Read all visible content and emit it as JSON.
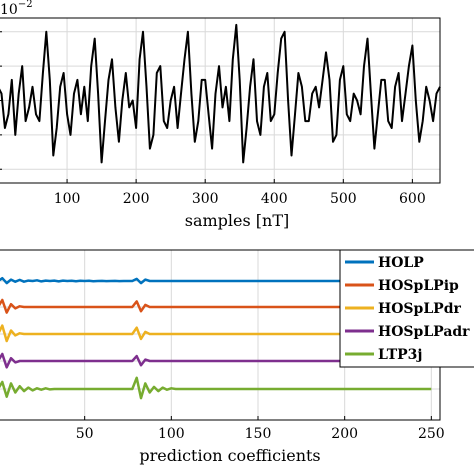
{
  "chart_data": [
    {
      "type": "line",
      "scale_label": "10^-2",
      "scale_base": "10",
      "scale_exp": "−2",
      "xlabel": "samples [nT]",
      "xlim": [
        0,
        640
      ],
      "x_ticks": [
        100,
        200,
        300,
        400,
        500,
        600
      ],
      "ylim": [
        -1.2,
        1.2
      ],
      "y_grid": [
        -1.0,
        -0.5,
        0.0,
        0.5,
        1.0
      ],
      "grid": true,
      "series": [
        {
          "color": "#000000",
          "x": [
            0,
            5,
            10,
            15,
            20,
            25,
            30,
            35,
            40,
            45,
            50,
            55,
            60,
            65,
            70,
            75,
            80,
            85,
            90,
            95,
            100,
            105,
            110,
            115,
            120,
            125,
            130,
            135,
            140,
            145,
            150,
            155,
            160,
            165,
            170,
            175,
            180,
            185,
            190,
            195,
            200,
            205,
            210,
            215,
            220,
            225,
            230,
            235,
            240,
            245,
            250,
            255,
            260,
            265,
            270,
            275,
            280,
            285,
            290,
            295,
            300,
            305,
            310,
            315,
            320,
            325,
            330,
            335,
            340,
            345,
            350,
            355,
            360,
            365,
            370,
            375,
            380,
            385,
            390,
            395,
            400,
            405,
            410,
            415,
            420,
            425,
            430,
            435,
            440,
            445,
            450,
            455,
            460,
            465,
            470,
            475,
            480,
            485,
            490,
            495,
            500,
            505,
            510,
            515,
            520,
            525,
            530,
            535,
            540,
            545,
            550,
            555,
            560,
            565,
            570,
            575,
            580,
            585,
            590,
            595,
            600,
            605,
            610,
            615,
            620,
            625,
            630,
            635,
            640
          ],
          "y": [
            0.2,
            0.1,
            -0.4,
            -0.2,
            0.3,
            -0.5,
            0.1,
            0.5,
            -0.3,
            -0.1,
            0.2,
            -0.2,
            -0.3,
            0.4,
            1.0,
            0.3,
            -0.8,
            -0.4,
            0.2,
            0.4,
            -0.2,
            -0.5,
            0.1,
            0.3,
            -0.2,
            0.2,
            -0.3,
            0.5,
            0.9,
            0.1,
            -0.9,
            -0.3,
            0.3,
            0.6,
            -0.1,
            -0.6,
            0.0,
            0.4,
            -0.1,
            0.0,
            -0.4,
            0.6,
            1.0,
            0.2,
            -0.7,
            -0.5,
            0.4,
            0.5,
            -0.3,
            -0.4,
            0.0,
            0.2,
            -0.4,
            0.1,
            0.6,
            1.0,
            0.1,
            -0.6,
            -0.3,
            0.3,
            0.3,
            -0.2,
            -0.7,
            0.1,
            0.5,
            -0.1,
            0.2,
            -0.3,
            0.6,
            1.1,
            0.3,
            -0.9,
            -0.4,
            0.2,
            0.6,
            -0.3,
            -0.5,
            0.2,
            0.4,
            -0.3,
            -0.2,
            0.4,
            0.9,
            1.0,
            0.0,
            -0.8,
            -0.2,
            0.4,
            0.2,
            -0.3,
            -0.3,
            0.1,
            0.2,
            -0.1,
            0.3,
            0.7,
            0.3,
            -0.6,
            -0.5,
            0.3,
            0.5,
            -0.2,
            -0.3,
            0.1,
            0.0,
            -0.2,
            0.5,
            0.9,
            0.1,
            -0.7,
            -0.2,
            0.3,
            0.3,
            -0.3,
            -0.4,
            0.2,
            0.4,
            -0.3,
            0.1,
            0.5,
            0.8,
            0.0,
            -0.6,
            -0.3,
            0.2,
            0.0,
            -0.3,
            0.1,
            0.2
          ]
        }
      ]
    },
    {
      "type": "line",
      "xlabel": "prediction coefficients",
      "xlim": [
        0,
        255
      ],
      "x_ticks": [
        50,
        100,
        150,
        200,
        250
      ],
      "grid": true,
      "legend_position": "top-right",
      "series": [
        {
          "name": "HOLP",
          "color": "#0072BD",
          "values": [
            0,
            0.4,
            -0.3,
            0.2,
            -0.1,
            0.15,
            -0.1,
            0.05,
            0,
            0.1,
            -0.05,
            0.05,
            0,
            0.05,
            -0.05,
            0.05,
            0,
            0.03,
            -0.03,
            0.03,
            0,
            0.03,
            -0.03,
            0,
            0.02,
            -0.02,
            0,
            0.02,
            -0.02,
            0,
            0,
            0,
            0.3,
            -0.3,
            0.2,
            0,
            0,
            0,
            0,
            0,
            0,
            0,
            0,
            0,
            0,
            0,
            0,
            0,
            0,
            0,
            0,
            0
          ]
        },
        {
          "name": "HOSpLPip",
          "color": "#D95319",
          "values": [
            0,
            1.0,
            -0.8,
            0.4,
            -0.2,
            0.1,
            0,
            0,
            0,
            0,
            0,
            0,
            0,
            0,
            0,
            0,
            0,
            0,
            0,
            0,
            0,
            0,
            0,
            0,
            0,
            0,
            0,
            0,
            0,
            0,
            0,
            0,
            0.8,
            -0.6,
            0.3,
            0,
            0,
            0,
            0,
            0,
            0,
            0,
            0,
            0,
            0,
            0,
            0,
            0,
            0,
            0,
            0,
            0
          ]
        },
        {
          "name": "HOSpLPdr",
          "color": "#EDB120",
          "values": [
            0,
            1.2,
            -1.0,
            0.5,
            -0.2,
            0.1,
            0,
            0,
            0,
            0,
            0,
            0,
            0,
            0,
            0,
            0,
            0,
            0,
            0,
            0,
            0,
            0,
            0,
            0,
            0,
            0,
            0,
            0,
            0,
            0,
            0,
            0,
            0.9,
            -0.7,
            0.3,
            0,
            0,
            0,
            0,
            0,
            0,
            0,
            0,
            0,
            0,
            0,
            0,
            0,
            0,
            0,
            0,
            0
          ]
        },
        {
          "name": "HOSpLPadr",
          "color": "#7E2F8E",
          "values": [
            0,
            1.0,
            -0.9,
            0.4,
            -0.2,
            0,
            0,
            0,
            0,
            0,
            0,
            0,
            0,
            0,
            0,
            0,
            0,
            0,
            0,
            0,
            0,
            0,
            0,
            0,
            0,
            0,
            0,
            0,
            0,
            0,
            0,
            0,
            0.7,
            -0.6,
            0.2,
            0,
            0,
            0,
            0,
            0,
            0,
            0,
            0,
            0,
            0,
            0,
            0,
            0,
            0,
            0,
            0,
            0
          ]
        },
        {
          "name": "LTP3j",
          "color": "#77AC30",
          "values": [
            0,
            1.0,
            -1.1,
            0.8,
            -0.5,
            0.4,
            -0.3,
            0.2,
            -0.2,
            0.1,
            -0.1,
            0.1,
            -0.05,
            0,
            0,
            0,
            0,
            0,
            0,
            0,
            0,
            0,
            0,
            0,
            0,
            0,
            0,
            0,
            0,
            0,
            0,
            0,
            1.6,
            -1.3,
            0.8,
            -0.5,
            0.3,
            -0.3,
            0.2,
            -0.1,
            0.1,
            0,
            0,
            0,
            0,
            0,
            0,
            0,
            0,
            0,
            0,
            0
          ]
        }
      ]
    }
  ]
}
